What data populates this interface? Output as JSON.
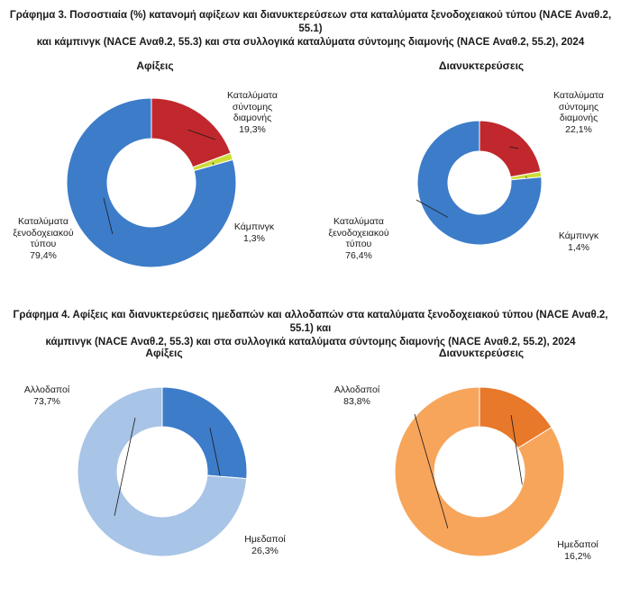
{
  "figure3": {
    "title_line1": "Γράφημα 3. Ποσοστιαία (%) κατανομή αφίξεων και διανυκτερεύσεων στα καταλύματα ξενοδοχειακού τύπου (NACE Αναθ.2, 55.1)",
    "title_line2": "και κάμπινγκ (NACE Αναθ.2, 55.3) και στα συλλογικά καταλύματα σύντομης διαμονής (NACE Αναθ.2, 55.2), 2024"
  },
  "figure4": {
    "title_line1": "Γράφημα 4. Αφίξεις και διανυκτερεύσεις ημεδαπών και αλλοδαπών στα καταλύματα ξενοδοχειακού τύπου (NACE Αναθ.2, 55.1) και",
    "title_line2": "κάμπινγκ (NACE Αναθ.2, 55.3) και στα συλλογικά καταλύματα σύντομης διαμονής (NACE Αναθ.2, 55.2), 2024"
  },
  "chart_data": [
    {
      "type": "pie",
      "title": "Αφίξεις",
      "slices": [
        {
          "name": "Καταλύματα σύντομης διαμονής",
          "value": 19.3,
          "value_label": "19,3%",
          "color": "#c0282d",
          "label_lines": [
            "Καταλύματα",
            "σύντομης",
            "διαμονής",
            "19,3%"
          ]
        },
        {
          "name": "Κάμπινγκ",
          "value": 1.3,
          "value_label": "1,3%",
          "color": "#cddc39",
          "label_lines": [
            "Κάμπινγκ",
            "1,3%"
          ]
        },
        {
          "name": "Καταλύματα ξενοδοχειακού τύπου",
          "value": 79.4,
          "value_label": "79,4%",
          "color": "#3d7cc9",
          "label_lines": [
            "Καταλύματα",
            "ξενοδοχειακού",
            "τύπου",
            "79,4%"
          ]
        }
      ]
    },
    {
      "type": "pie",
      "title": "Διανυκτερεύσεις",
      "slices": [
        {
          "name": "Καταλύματα σύντομης διαμονής",
          "value": 22.1,
          "value_label": "22,1%",
          "color": "#c0282d",
          "label_lines": [
            "Καταλύματα",
            "σύντομης",
            "διαμονής",
            "22,1%"
          ]
        },
        {
          "name": "Κάμπινγκ",
          "value": 1.4,
          "value_label": "1,4%",
          "color": "#cddc39",
          "label_lines": [
            "Κάμπινγκ",
            "1,4%"
          ]
        },
        {
          "name": "Καταλύματα ξενοδοχειακού τύπου",
          "value": 76.4,
          "value_label": "76,4%",
          "color": "#3d7cc9",
          "label_lines": [
            "Καταλύματα",
            "ξενοδοχειακού",
            "τύπου",
            "76,4%"
          ]
        }
      ]
    },
    {
      "type": "pie",
      "title": "Αφίξεις",
      "slices": [
        {
          "name": "Ημεδαποί",
          "value": 26.3,
          "value_label": "26,3%",
          "color": "#3d7cc9",
          "label_lines": [
            "Ημεδαποί",
            "26,3%"
          ]
        },
        {
          "name": "Αλλοδαποί",
          "value": 73.7,
          "value_label": "73,7%",
          "color": "#a8c4e6",
          "label_lines": [
            "Αλλοδαποί",
            "73,7%"
          ]
        }
      ]
    },
    {
      "type": "pie",
      "title": "Διανυκτερεύσεις",
      "slices": [
        {
          "name": "Ημεδαποί",
          "value": 16.2,
          "value_label": "16,2%",
          "color": "#e8782a",
          "label_lines": [
            "Ημεδαποί",
            "16,2%"
          ]
        },
        {
          "name": "Αλλοδαποί",
          "value": 83.8,
          "value_label": "83,8%",
          "color": "#f7a55b",
          "label_lines": [
            "Αλλοδαποί",
            "83,8%"
          ]
        }
      ]
    }
  ]
}
